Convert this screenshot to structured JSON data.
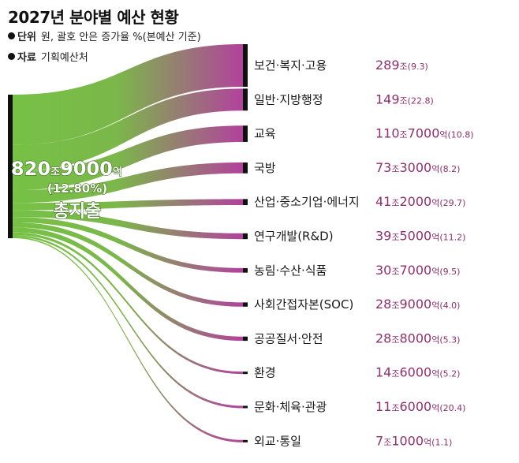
{
  "title": "2027년 분야별 예산 현황",
  "meta": {
    "unit_key": "단위",
    "unit_value": "원, 괄호 안은 증가율 %(본예산 기준)",
    "source_key": "자료",
    "source_value": "기획예산처"
  },
  "colors": {
    "source": "#6fbe3c",
    "target": "#b0339a",
    "node": "#111111",
    "value_text": "#8e2f6e"
  },
  "chart_data": {
    "type": "sankey",
    "title": "2027년 분야별 예산 현황",
    "source": {
      "label": "총지출",
      "amount_text": "820조9000억",
      "amount_parts": [
        "820",
        "조",
        "9000",
        "억"
      ],
      "growth_text": "(12.80%)",
      "value_trillion_won": 820.9,
      "growth_pct": 12.8
    },
    "targets": [
      {
        "label": "보건·복지·고용",
        "value_trillion_won": 289,
        "parts": [
          "289",
          "조"
        ],
        "growth": "(9.3)"
      },
      {
        "label": "일반·지방행정",
        "value_trillion_won": 149,
        "parts": [
          "149",
          "조"
        ],
        "growth": "(22.8)"
      },
      {
        "label": "교육",
        "value_trillion_won": 110.7,
        "parts": [
          "110",
          "조",
          "7000",
          "억"
        ],
        "growth": "(10.8)"
      },
      {
        "label": "국방",
        "value_trillion_won": 73.3,
        "parts": [
          "73",
          "조",
          "3000",
          "억"
        ],
        "growth": "(8.2)"
      },
      {
        "label": "산업·중소기업·에너지",
        "value_trillion_won": 41.2,
        "parts": [
          "41",
          "조",
          "2000",
          "억"
        ],
        "growth": "(29.7)"
      },
      {
        "label": "연구개발(R&D)",
        "value_trillion_won": 39.5,
        "parts": [
          "39",
          "조",
          "5000",
          "억"
        ],
        "growth": "(11.2)"
      },
      {
        "label": "농림·수산·식품",
        "value_trillion_won": 30.7,
        "parts": [
          "30",
          "조",
          "7000",
          "억"
        ],
        "growth": "(9.5)"
      },
      {
        "label": "사회간접자본(SOC)",
        "value_trillion_won": 28.9,
        "parts": [
          "28",
          "조",
          "9000",
          "억"
        ],
        "growth": "(4.0)"
      },
      {
        "label": "공공질서·안전",
        "value_trillion_won": 28.8,
        "parts": [
          "28",
          "조",
          "8000",
          "억"
        ],
        "growth": "(5.3)"
      },
      {
        "label": "환경",
        "value_trillion_won": 14.6,
        "parts": [
          "14",
          "조",
          "6000",
          "억"
        ],
        "growth": "(5.2)"
      },
      {
        "label": "문화·체육·관광",
        "value_trillion_won": 11.6,
        "parts": [
          "11",
          "조",
          "6000",
          "억"
        ],
        "growth": "(20.4)"
      },
      {
        "label": "외교·통일",
        "value_trillion_won": 7.1,
        "parts": [
          "7",
          "조",
          "1000",
          "억"
        ],
        "growth": "(1.1)"
      }
    ]
  }
}
